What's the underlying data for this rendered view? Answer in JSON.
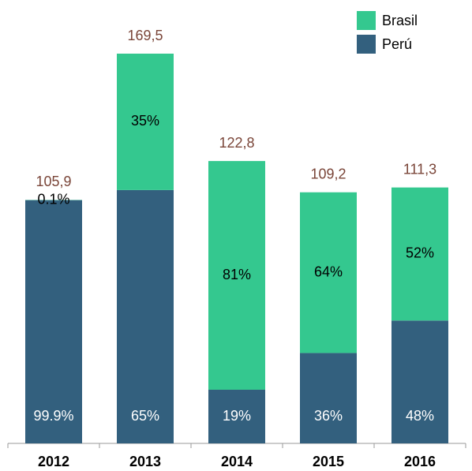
{
  "chart_data": {
    "type": "stacked_bar",
    "categories": [
      "2012",
      "2013",
      "2014",
      "2015",
      "2016"
    ],
    "series": [
      {
        "name": "Perú",
        "color": "#33607e",
        "values": [
          99.9,
          65,
          19,
          36,
          48
        ],
        "value_labels": [
          "99.9%",
          "65%",
          "19%",
          "36%",
          "48%"
        ]
      },
      {
        "name": "Brasil",
        "color": "#34c88f",
        "values": [
          0.1,
          35,
          81,
          64,
          52
        ],
        "value_labels": [
          "0.1%",
          "35%",
          "81%",
          "64%",
          "52%"
        ]
      }
    ],
    "totals": {
      "values": [
        105.9,
        169.5,
        122.8,
        109.2,
        111.3
      ],
      "value_labels": [
        "105,9",
        "169,5",
        "122,8",
        "109,2",
        "111,3"
      ],
      "color": "#7a4538"
    },
    "legend": "top-right"
  }
}
